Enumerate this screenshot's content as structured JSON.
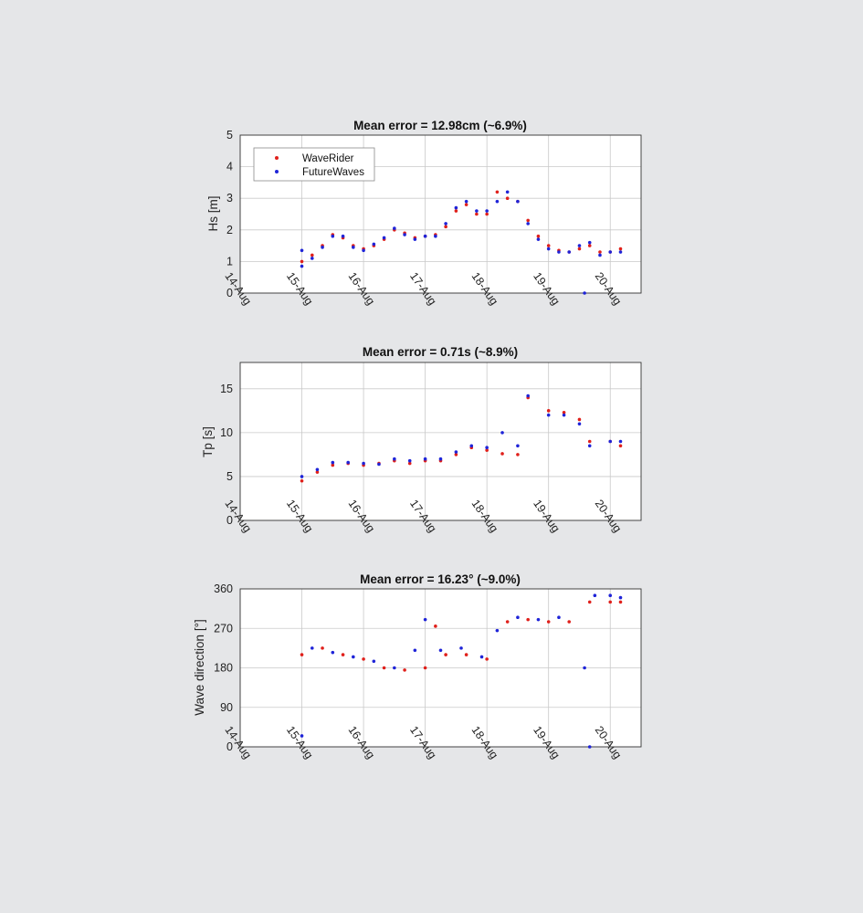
{
  "colors": {
    "waverider": "#e0201b",
    "futurewaves": "#1f24d8",
    "grid": "#c9c9c9",
    "axes_bg": "#ffffff",
    "page_bg": "#e5e6e8"
  },
  "chart_data": [
    {
      "type": "scatter",
      "title": "Mean error = 12.98cm (~6.9%)",
      "ylabel": "Hs [m]",
      "xlabel": "",
      "x_ticks": [
        "14-Aug",
        "15-Aug",
        "16-Aug",
        "17-Aug",
        "18-Aug",
        "19-Aug",
        "20-Aug"
      ],
      "xlim": [
        "2000-08-14T00:00",
        "2000-08-20T12:00"
      ],
      "ylim": [
        0,
        5
      ],
      "y_ticks": [
        "0",
        "1",
        "2",
        "3",
        "4",
        "5"
      ],
      "legend": {
        "placement": "top-left",
        "entries": [
          "WaveRider",
          "FutureWaves"
        ]
      },
      "grid": true,
      "series": [
        {
          "name": "WaveRider",
          "color": "#e0201b",
          "points": [
            [
              "2000-08-15T00:00",
              1.0
            ],
            [
              "2000-08-15T04:00",
              1.2
            ],
            [
              "2000-08-15T08:00",
              1.5
            ],
            [
              "2000-08-15T12:00",
              1.85
            ],
            [
              "2000-08-15T16:00",
              1.75
            ],
            [
              "2000-08-15T20:00",
              1.5
            ],
            [
              "2000-08-16T00:00",
              1.4
            ],
            [
              "2000-08-16T04:00",
              1.5
            ],
            [
              "2000-08-16T08:00",
              1.7
            ],
            [
              "2000-08-16T12:00",
              2.0
            ],
            [
              "2000-08-16T16:00",
              1.9
            ],
            [
              "2000-08-16T20:00",
              1.75
            ],
            [
              "2000-08-17T00:00",
              1.8
            ],
            [
              "2000-08-17T04:00",
              1.85
            ],
            [
              "2000-08-17T08:00",
              2.1
            ],
            [
              "2000-08-17T12:00",
              2.6
            ],
            [
              "2000-08-17T16:00",
              2.8
            ],
            [
              "2000-08-17T20:00",
              2.5
            ],
            [
              "2000-08-18T00:00",
              2.5
            ],
            [
              "2000-08-18T04:00",
              3.2
            ],
            [
              "2000-08-18T08:00",
              3.0
            ],
            [
              "2000-08-18T12:00",
              2.9
            ],
            [
              "2000-08-18T16:00",
              2.3
            ],
            [
              "2000-08-18T20:00",
              1.8
            ],
            [
              "2000-08-19T00:00",
              1.5
            ],
            [
              "2000-08-19T04:00",
              1.35
            ],
            [
              "2000-08-19T08:00",
              1.3
            ],
            [
              "2000-08-19T12:00",
              1.4
            ],
            [
              "2000-08-19T16:00",
              1.5
            ],
            [
              "2000-08-19T20:00",
              1.3
            ],
            [
              "2000-08-20T00:00",
              1.3
            ],
            [
              "2000-08-20T04:00",
              1.4
            ]
          ]
        },
        {
          "name": "FutureWaves",
          "color": "#1f24d8",
          "points": [
            [
              "2000-08-15T00:00",
              1.35
            ],
            [
              "2000-08-15T00:00",
              0.85
            ],
            [
              "2000-08-15T04:00",
              1.1
            ],
            [
              "2000-08-15T08:00",
              1.45
            ],
            [
              "2000-08-15T12:00",
              1.8
            ],
            [
              "2000-08-15T16:00",
              1.8
            ],
            [
              "2000-08-15T20:00",
              1.45
            ],
            [
              "2000-08-16T00:00",
              1.35
            ],
            [
              "2000-08-16T04:00",
              1.55
            ],
            [
              "2000-08-16T08:00",
              1.75
            ],
            [
              "2000-08-16T12:00",
              2.05
            ],
            [
              "2000-08-16T16:00",
              1.85
            ],
            [
              "2000-08-16T20:00",
              1.7
            ],
            [
              "2000-08-17T00:00",
              1.8
            ],
            [
              "2000-08-17T04:00",
              1.8
            ],
            [
              "2000-08-17T08:00",
              2.2
            ],
            [
              "2000-08-17T12:00",
              2.7
            ],
            [
              "2000-08-17T16:00",
              2.9
            ],
            [
              "2000-08-17T20:00",
              2.6
            ],
            [
              "2000-08-18T00:00",
              2.6
            ],
            [
              "2000-08-18T04:00",
              2.9
            ],
            [
              "2000-08-18T08:00",
              3.2
            ],
            [
              "2000-08-18T12:00",
              2.9
            ],
            [
              "2000-08-18T16:00",
              2.2
            ],
            [
              "2000-08-18T20:00",
              1.7
            ],
            [
              "2000-08-19T00:00",
              1.4
            ],
            [
              "2000-08-19T04:00",
              1.3
            ],
            [
              "2000-08-19T08:00",
              1.3
            ],
            [
              "2000-08-19T12:00",
              1.5
            ],
            [
              "2000-08-19T14:00",
              0.0
            ],
            [
              "2000-08-19T16:00",
              1.6
            ],
            [
              "2000-08-19T20:00",
              1.2
            ],
            [
              "2000-08-20T00:00",
              1.3
            ],
            [
              "2000-08-20T04:00",
              1.3
            ]
          ]
        }
      ]
    },
    {
      "type": "scatter",
      "title": "Mean error = 0.71s (~8.9%)",
      "ylabel": "Tp [s]",
      "xlabel": "",
      "x_ticks": [
        "14-Aug",
        "15-Aug",
        "16-Aug",
        "17-Aug",
        "18-Aug",
        "19-Aug",
        "20-Aug"
      ],
      "xlim": [
        "2000-08-14T00:00",
        "2000-08-20T12:00"
      ],
      "ylim": [
        0,
        18
      ],
      "y_ticks": [
        "0",
        "5",
        "10",
        "15"
      ],
      "grid": true,
      "series": [
        {
          "name": "WaveRider",
          "color": "#e0201b",
          "points": [
            [
              "2000-08-15T00:00",
              4.5
            ],
            [
              "2000-08-15T06:00",
              5.5
            ],
            [
              "2000-08-15T12:00",
              6.3
            ],
            [
              "2000-08-15T18:00",
              6.5
            ],
            [
              "2000-08-16T00:00",
              6.3
            ],
            [
              "2000-08-16T06:00",
              6.5
            ],
            [
              "2000-08-16T12:00",
              6.8
            ],
            [
              "2000-08-16T18:00",
              6.5
            ],
            [
              "2000-08-17T00:00",
              6.8
            ],
            [
              "2000-08-17T06:00",
              6.8
            ],
            [
              "2000-08-17T12:00",
              7.5
            ],
            [
              "2000-08-17T18:00",
              8.3
            ],
            [
              "2000-08-18T00:00",
              8.0
            ],
            [
              "2000-08-18T06:00",
              7.6
            ],
            [
              "2000-08-18T12:00",
              7.5
            ],
            [
              "2000-08-18T16:00",
              14.0
            ],
            [
              "2000-08-19T00:00",
              12.5
            ],
            [
              "2000-08-19T06:00",
              12.3
            ],
            [
              "2000-08-19T12:00",
              11.5
            ],
            [
              "2000-08-19T16:00",
              9.0
            ],
            [
              "2000-08-20T00:00",
              9.0
            ],
            [
              "2000-08-20T04:00",
              8.5
            ]
          ]
        },
        {
          "name": "FutureWaves",
          "color": "#1f24d8",
          "points": [
            [
              "2000-08-15T00:00",
              5.0
            ],
            [
              "2000-08-15T06:00",
              5.8
            ],
            [
              "2000-08-15T12:00",
              6.6
            ],
            [
              "2000-08-15T18:00",
              6.6
            ],
            [
              "2000-08-16T00:00",
              6.5
            ],
            [
              "2000-08-16T06:00",
              6.4
            ],
            [
              "2000-08-16T12:00",
              7.0
            ],
            [
              "2000-08-16T18:00",
              6.8
            ],
            [
              "2000-08-17T00:00",
              7.0
            ],
            [
              "2000-08-17T06:00",
              7.0
            ],
            [
              "2000-08-17T12:00",
              7.8
            ],
            [
              "2000-08-17T18:00",
              8.5
            ],
            [
              "2000-08-18T00:00",
              8.3
            ],
            [
              "2000-08-18T06:00",
              10.0
            ],
            [
              "2000-08-18T12:00",
              8.5
            ],
            [
              "2000-08-18T16:00",
              14.2
            ],
            [
              "2000-08-19T00:00",
              12.0
            ],
            [
              "2000-08-19T06:00",
              12.0
            ],
            [
              "2000-08-19T12:00",
              11.0
            ],
            [
              "2000-08-19T16:00",
              8.5
            ],
            [
              "2000-08-20T00:00",
              9.0
            ],
            [
              "2000-08-20T04:00",
              9.0
            ]
          ]
        }
      ]
    },
    {
      "type": "scatter",
      "title": "Mean error = 16.23° (~9.0%)",
      "ylabel": "Wave direction [°]",
      "xlabel": "",
      "x_ticks": [
        "14-Aug",
        "15-Aug",
        "16-Aug",
        "17-Aug",
        "18-Aug",
        "19-Aug",
        "20-Aug"
      ],
      "xlim": [
        "2000-08-14T00:00",
        "2000-08-20T12:00"
      ],
      "ylim": [
        0,
        360
      ],
      "y_ticks": [
        "0",
        "90",
        "180",
        "270",
        "360"
      ],
      "grid": true,
      "series": [
        {
          "name": "WaveRider",
          "color": "#e0201b",
          "points": [
            [
              "2000-08-15T00:00",
              210
            ],
            [
              "2000-08-15T08:00",
              225
            ],
            [
              "2000-08-15T16:00",
              210
            ],
            [
              "2000-08-16T00:00",
              200
            ],
            [
              "2000-08-16T08:00",
              180
            ],
            [
              "2000-08-16T16:00",
              175
            ],
            [
              "2000-08-17T00:00",
              180
            ],
            [
              "2000-08-17T04:00",
              275
            ],
            [
              "2000-08-17T08:00",
              210
            ],
            [
              "2000-08-17T16:00",
              210
            ],
            [
              "2000-08-18T00:00",
              200
            ],
            [
              "2000-08-18T08:00",
              285
            ],
            [
              "2000-08-18T16:00",
              290
            ],
            [
              "2000-08-19T00:00",
              285
            ],
            [
              "2000-08-19T08:00",
              285
            ],
            [
              "2000-08-19T16:00",
              330
            ],
            [
              "2000-08-20T00:00",
              330
            ],
            [
              "2000-08-20T04:00",
              330
            ]
          ]
        },
        {
          "name": "FutureWaves",
          "color": "#1f24d8",
          "points": [
            [
              "2000-08-15T00:00",
              25
            ],
            [
              "2000-08-15T04:00",
              225
            ],
            [
              "2000-08-15T12:00",
              215
            ],
            [
              "2000-08-15T20:00",
              205
            ],
            [
              "2000-08-16T04:00",
              195
            ],
            [
              "2000-08-16T12:00",
              180
            ],
            [
              "2000-08-16T20:00",
              220
            ],
            [
              "2000-08-17T00:00",
              290
            ],
            [
              "2000-08-17T06:00",
              220
            ],
            [
              "2000-08-17T14:00",
              225
            ],
            [
              "2000-08-17T22:00",
              205
            ],
            [
              "2000-08-18T04:00",
              265
            ],
            [
              "2000-08-18T12:00",
              295
            ],
            [
              "2000-08-18T20:00",
              290
            ],
            [
              "2000-08-19T04:00",
              295
            ],
            [
              "2000-08-19T14:00",
              180
            ],
            [
              "2000-08-19T16:00",
              0
            ],
            [
              "2000-08-19T18:00",
              345
            ],
            [
              "2000-08-20T00:00",
              345
            ],
            [
              "2000-08-20T04:00",
              340
            ]
          ]
        }
      ]
    }
  ]
}
